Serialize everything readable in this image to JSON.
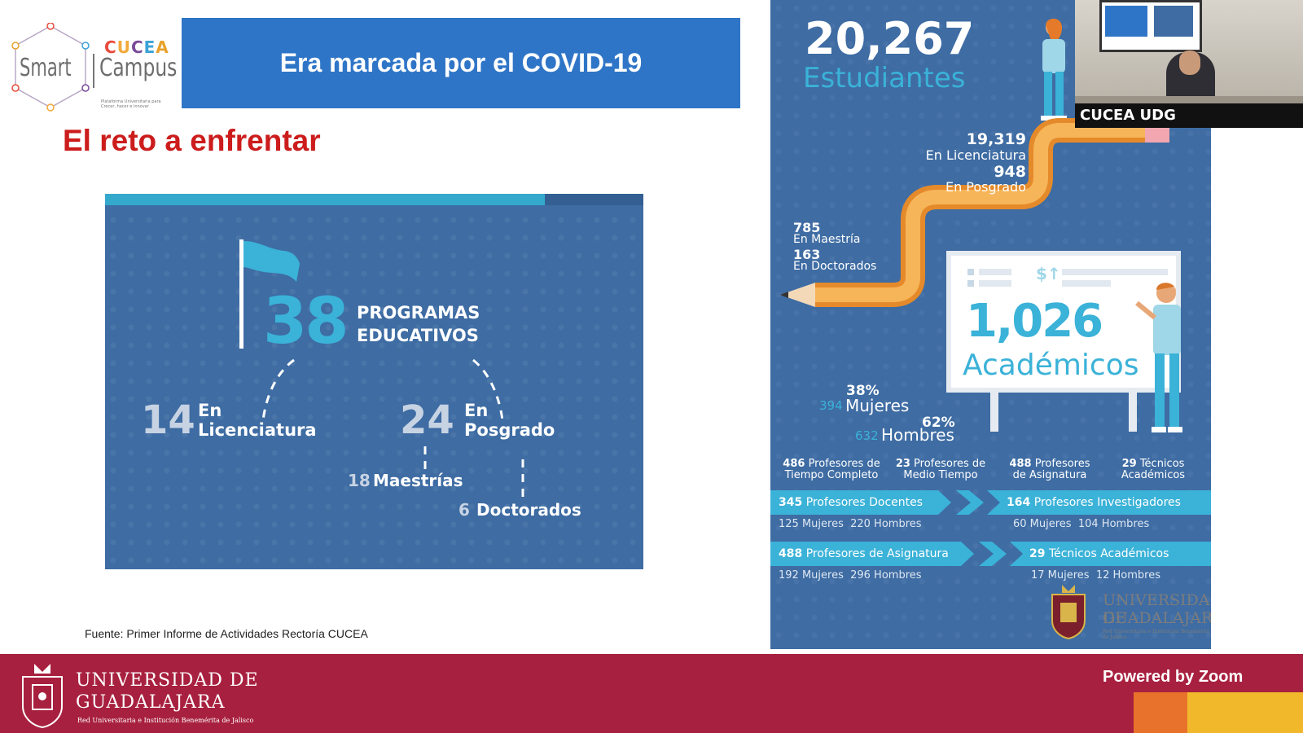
{
  "logo": {
    "cucea_letters": [
      "C",
      "U",
      "C",
      "E",
      "A"
    ],
    "cucea_colors": [
      "#e84b3c",
      "#f2a93b",
      "#7a4b9a",
      "#3aa2d6",
      "#e8a22c"
    ],
    "smart": "Smart",
    "campus": "Campus",
    "tagline": "Plataforma Universitaria para Crecer, hacer e innovar"
  },
  "banner": {
    "title": "Era marcada por el COVID-19"
  },
  "subtitle": "El reto a enfrentar",
  "programs": {
    "total": "38",
    "total_label_1": "PROGRAMAS",
    "total_label_2": "EDUCATIVOS",
    "lic_count": "14",
    "lic_label_1": "En",
    "lic_label_2": "Licenciatura",
    "pos_count": "24",
    "pos_label_1": "En",
    "pos_label_2": "Posgrado",
    "maestrias_count": "18",
    "maestrias_label": "Maestrías",
    "doctorados_count": "6",
    "doctorados_label": "Doctorados"
  },
  "source": "Fuente: Primer Informe de Actividades Rectoría CUCEA",
  "info": {
    "students_count": "20,267",
    "students_label": "Estudiantes",
    "lic_count": "19,319",
    "lic_label": "En Licenciatura",
    "pos_count": "948",
    "pos_label": "En Posgrado",
    "maestria_count": "785",
    "maestria_label": "En Maestría",
    "doctorado_count": "163",
    "doctorado_label": "En Doctorados",
    "academics_count": "1,026",
    "academics_label": "Académicos",
    "women_pct": "38%",
    "women_count": "394",
    "women_label": "Mujeres",
    "men_pct": "62%",
    "men_count": "632",
    "men_label": "Hombres",
    "categories": [
      {
        "count": "486",
        "line1": "Profesores de",
        "line2": "Tiempo Completo"
      },
      {
        "count": "23",
        "line1": "Profesores de",
        "line2": "Medio Tiempo"
      },
      {
        "count": "488",
        "line1": "Profesores",
        "line2": "de Asignatura"
      },
      {
        "count": "29",
        "line1": "Técnicos",
        "line2": "Académicos"
      }
    ],
    "rows": [
      {
        "count": "345",
        "label": "Profesores Docentes",
        "women": "125 Mujeres",
        "men": "220 Hombres"
      },
      {
        "count": "164",
        "label": "Profesores Investigadores",
        "women": "60 Mujeres",
        "men": "104 Hombres"
      },
      {
        "count": "488",
        "label": "Profesores de Asignatura",
        "women": "192 Mujeres",
        "men": "296 Hombres"
      },
      {
        "count": "29",
        "label": "Técnicos Académicos",
        "women": "17 Mujeres",
        "men": "12 Hombres"
      }
    ],
    "udg_line1": "UNIVERSIDAD DE",
    "udg_line2": "GUADALAJARA",
    "udg_line3": "Red Universitaria e Institución Benemérita de Jalisco"
  },
  "video": {
    "participant_name": "CUCEA UDG"
  },
  "footer": {
    "udg_line1": "UNIVERSIDAD DE",
    "udg_line2": "GUADALAJARA",
    "udg_line3": "Red Universitaria e Institución Benemérita de Jalisco",
    "powered": "Powered by Zoom"
  },
  "colors": {
    "banner": "#2f75c7",
    "subtitle": "#cc1c1c",
    "panel": "#3e6ca3",
    "accent_cyan": "#3bb2d8",
    "pencil": "#f5a54a",
    "footer": "#a8203f"
  }
}
